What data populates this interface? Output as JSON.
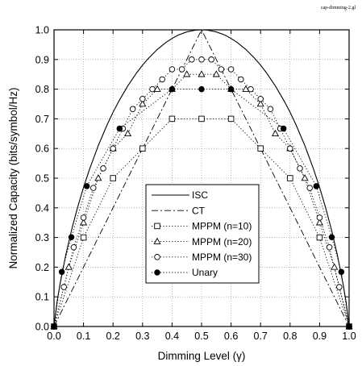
{
  "file_tag": "cap-dimming-2.gl",
  "chart_data": {
    "type": "line",
    "xlabel": "Dimming Level (γ)",
    "ylabel": "Normalized Capacity (bits/symbol/Hz)",
    "xlim": [
      0,
      1
    ],
    "ylim": [
      0,
      1
    ],
    "xticks": [
      "0.0",
      "0.1",
      "0.2",
      "0.3",
      "0.4",
      "0.5",
      "0.6",
      "0.7",
      "0.8",
      "0.9",
      "1.0"
    ],
    "yticks": [
      "0.0",
      "0.1",
      "0.2",
      "0.3",
      "0.4",
      "0.5",
      "0.6",
      "0.7",
      "0.8",
      "0.9",
      "1.0"
    ],
    "grid": true,
    "legend_position": "center-bottom",
    "series": [
      {
        "name": "ISC",
        "style": "solid",
        "marker": "none",
        "x": [
          0,
          0.01,
          0.02,
          0.04,
          0.06,
          0.08,
          0.1,
          0.12,
          0.15,
          0.18,
          0.2,
          0.22,
          0.25,
          0.28,
          0.3,
          0.32,
          0.35,
          0.38,
          0.4,
          0.42,
          0.45,
          0.48,
          0.5,
          0.52,
          0.55,
          0.58,
          0.6,
          0.62,
          0.65,
          0.68,
          0.7,
          0.72,
          0.75,
          0.78,
          0.8,
          0.82,
          0.85,
          0.88,
          0.9,
          0.92,
          0.94,
          0.96,
          0.98,
          0.99,
          1.0
        ],
        "y": [
          0,
          0.081,
          0.141,
          0.242,
          0.327,
          0.402,
          0.469,
          0.529,
          0.61,
          0.68,
          0.722,
          0.76,
          0.811,
          0.855,
          0.881,
          0.904,
          0.934,
          0.958,
          0.971,
          0.982,
          0.993,
          0.999,
          1.0,
          0.999,
          0.993,
          0.982,
          0.971,
          0.958,
          0.934,
          0.904,
          0.881,
          0.855,
          0.811,
          0.76,
          0.722,
          0.68,
          0.61,
          0.529,
          0.469,
          0.402,
          0.327,
          0.242,
          0.141,
          0.081,
          0
        ]
      },
      {
        "name": "CT",
        "style": "dashdot",
        "marker": "none",
        "x": [
          0,
          0.5,
          1.0
        ],
        "y": [
          0,
          1.0,
          0
        ]
      },
      {
        "name": "MPPM (n=10)",
        "style": "dotted",
        "marker": "square",
        "x": [
          0,
          0.1,
          0.2,
          0.3,
          0.4,
          0.5,
          0.6,
          0.7,
          0.8,
          0.9,
          1.0
        ],
        "y": [
          0,
          0.3,
          0.5,
          0.6,
          0.7,
          0.7,
          0.7,
          0.6,
          0.5,
          0.3,
          0
        ]
      },
      {
        "name": "MPPM (n=20)",
        "style": "dotted",
        "marker": "triangle",
        "x": [
          0,
          0.05,
          0.1,
          0.15,
          0.2,
          0.25,
          0.3,
          0.35,
          0.4,
          0.45,
          0.5,
          0.55,
          0.6,
          0.65,
          0.7,
          0.75,
          0.8,
          0.85,
          0.9,
          0.95,
          1.0
        ],
        "y": [
          0,
          0.2,
          0.35,
          0.5,
          0.6,
          0.65,
          0.75,
          0.8,
          0.8,
          0.85,
          0.85,
          0.85,
          0.8,
          0.8,
          0.75,
          0.65,
          0.6,
          0.5,
          0.35,
          0.2,
          0
        ]
      },
      {
        "name": "MPPM (n=30)",
        "style": "dotted",
        "marker": "circle",
        "x": [
          0,
          0.0333,
          0.0667,
          0.1,
          0.1333,
          0.1667,
          0.2,
          0.2333,
          0.2667,
          0.3,
          0.3333,
          0.3667,
          0.4,
          0.4333,
          0.4667,
          0.5,
          0.5333,
          0.5667,
          0.6,
          0.6333,
          0.6667,
          0.7,
          0.7333,
          0.7667,
          0.8,
          0.8333,
          0.8667,
          0.9,
          0.9333,
          0.9667,
          1.0
        ],
        "y": [
          0,
          0.133,
          0.267,
          0.367,
          0.467,
          0.533,
          0.6,
          0.667,
          0.733,
          0.767,
          0.8,
          0.833,
          0.867,
          0.867,
          0.9,
          0.9,
          0.9,
          0.867,
          0.867,
          0.833,
          0.8,
          0.767,
          0.733,
          0.667,
          0.6,
          0.533,
          0.467,
          0.367,
          0.267,
          0.133,
          0
        ]
      },
      {
        "name": "Unary",
        "style": "dotted",
        "marker": "filled-circle",
        "x": [
          0,
          0.0263,
          0.0588,
          0.1111,
          0.2222,
          0.4,
          0.5,
          0.6,
          0.7778,
          0.8889,
          0.9412,
          0.9737,
          1.0
        ],
        "y": [
          0,
          0.184,
          0.301,
          0.473,
          0.667,
          0.8,
          0.8,
          0.8,
          0.667,
          0.473,
          0.301,
          0.184,
          0
        ]
      }
    ]
  }
}
